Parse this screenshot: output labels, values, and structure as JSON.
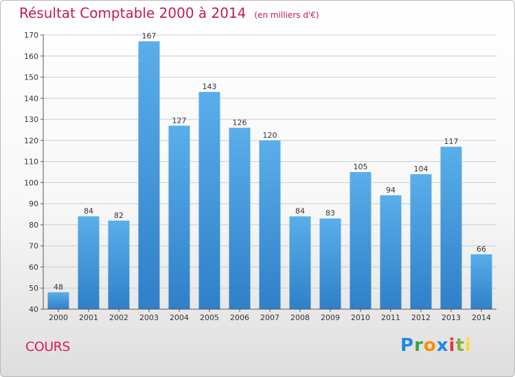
{
  "page": {
    "title": "Résultat Comptable 2000 à 2014",
    "unit": "(en milliers d'€)",
    "city": "COURS",
    "logo_text": "Proxiti"
  },
  "colors": {
    "bar_top": "#5aaeea",
    "bar_bottom": "#2f80c8",
    "title": "#c2185b",
    "grid": "#cccccc"
  },
  "chart_data": {
    "type": "bar",
    "title": "Résultat Comptable 2000 à 2014",
    "subtitle": "(en milliers d'€)",
    "xlabel": "",
    "ylabel": "",
    "categories": [
      "2000",
      "2001",
      "2002",
      "2003",
      "2004",
      "2005",
      "2006",
      "2007",
      "2008",
      "2009",
      "2010",
      "2011",
      "2012",
      "2013",
      "2014"
    ],
    "values": [
      48,
      84,
      82,
      167,
      127,
      143,
      126,
      120,
      84,
      83,
      105,
      94,
      104,
      117,
      66
    ],
    "ylim": [
      40,
      170
    ],
    "yticks": [
      40,
      50,
      60,
      70,
      80,
      90,
      100,
      110,
      120,
      130,
      140,
      150,
      160,
      170
    ],
    "grid": true,
    "legend": "none"
  }
}
